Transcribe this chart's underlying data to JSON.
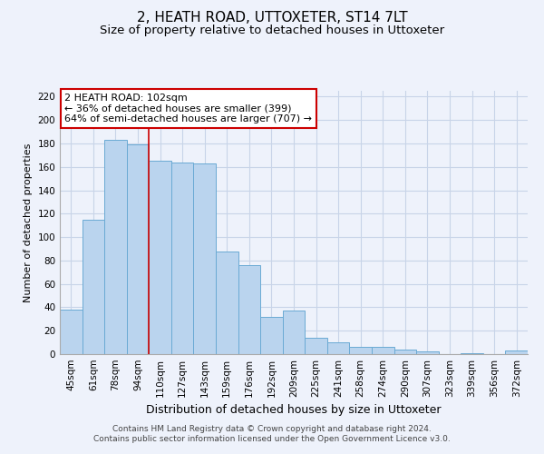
{
  "title": "2, HEATH ROAD, UTTOXETER, ST14 7LT",
  "subtitle": "Size of property relative to detached houses in Uttoxeter",
  "xlabel": "Distribution of detached houses by size in Uttoxeter",
  "ylabel": "Number of detached properties",
  "categories": [
    "45sqm",
    "61sqm",
    "78sqm",
    "94sqm",
    "110sqm",
    "127sqm",
    "143sqm",
    "159sqm",
    "176sqm",
    "192sqm",
    "209sqm",
    "225sqm",
    "241sqm",
    "258sqm",
    "274sqm",
    "290sqm",
    "307sqm",
    "323sqm",
    "339sqm",
    "356sqm",
    "372sqm"
  ],
  "values": [
    38,
    115,
    183,
    179,
    165,
    164,
    163,
    88,
    76,
    32,
    37,
    14,
    10,
    6,
    6,
    4,
    2,
    0,
    1,
    0,
    3
  ],
  "bar_color": "#bad4ee",
  "bar_edge_color": "#6aaad4",
  "background_color": "#eef2fb",
  "grid_color": "#c8d4e8",
  "vline_x": 3.5,
  "vline_color": "#cc0000",
  "annotation_title": "2 HEATH ROAD: 102sqm",
  "annotation_line1": "← 36% of detached houses are smaller (399)",
  "annotation_line2": "64% of semi-detached houses are larger (707) →",
  "annotation_box_color": "#ffffff",
  "annotation_box_edge_color": "#cc0000",
  "ylim": [
    0,
    225
  ],
  "yticks": [
    0,
    20,
    40,
    60,
    80,
    100,
    120,
    140,
    160,
    180,
    200,
    220
  ],
  "footer_line1": "Contains HM Land Registry data © Crown copyright and database right 2024.",
  "footer_line2": "Contains public sector information licensed under the Open Government Licence v3.0.",
  "title_fontsize": 11,
  "subtitle_fontsize": 9.5,
  "xlabel_fontsize": 9,
  "ylabel_fontsize": 8,
  "tick_fontsize": 7.5,
  "annotation_fontsize": 8,
  "footer_fontsize": 6.5
}
